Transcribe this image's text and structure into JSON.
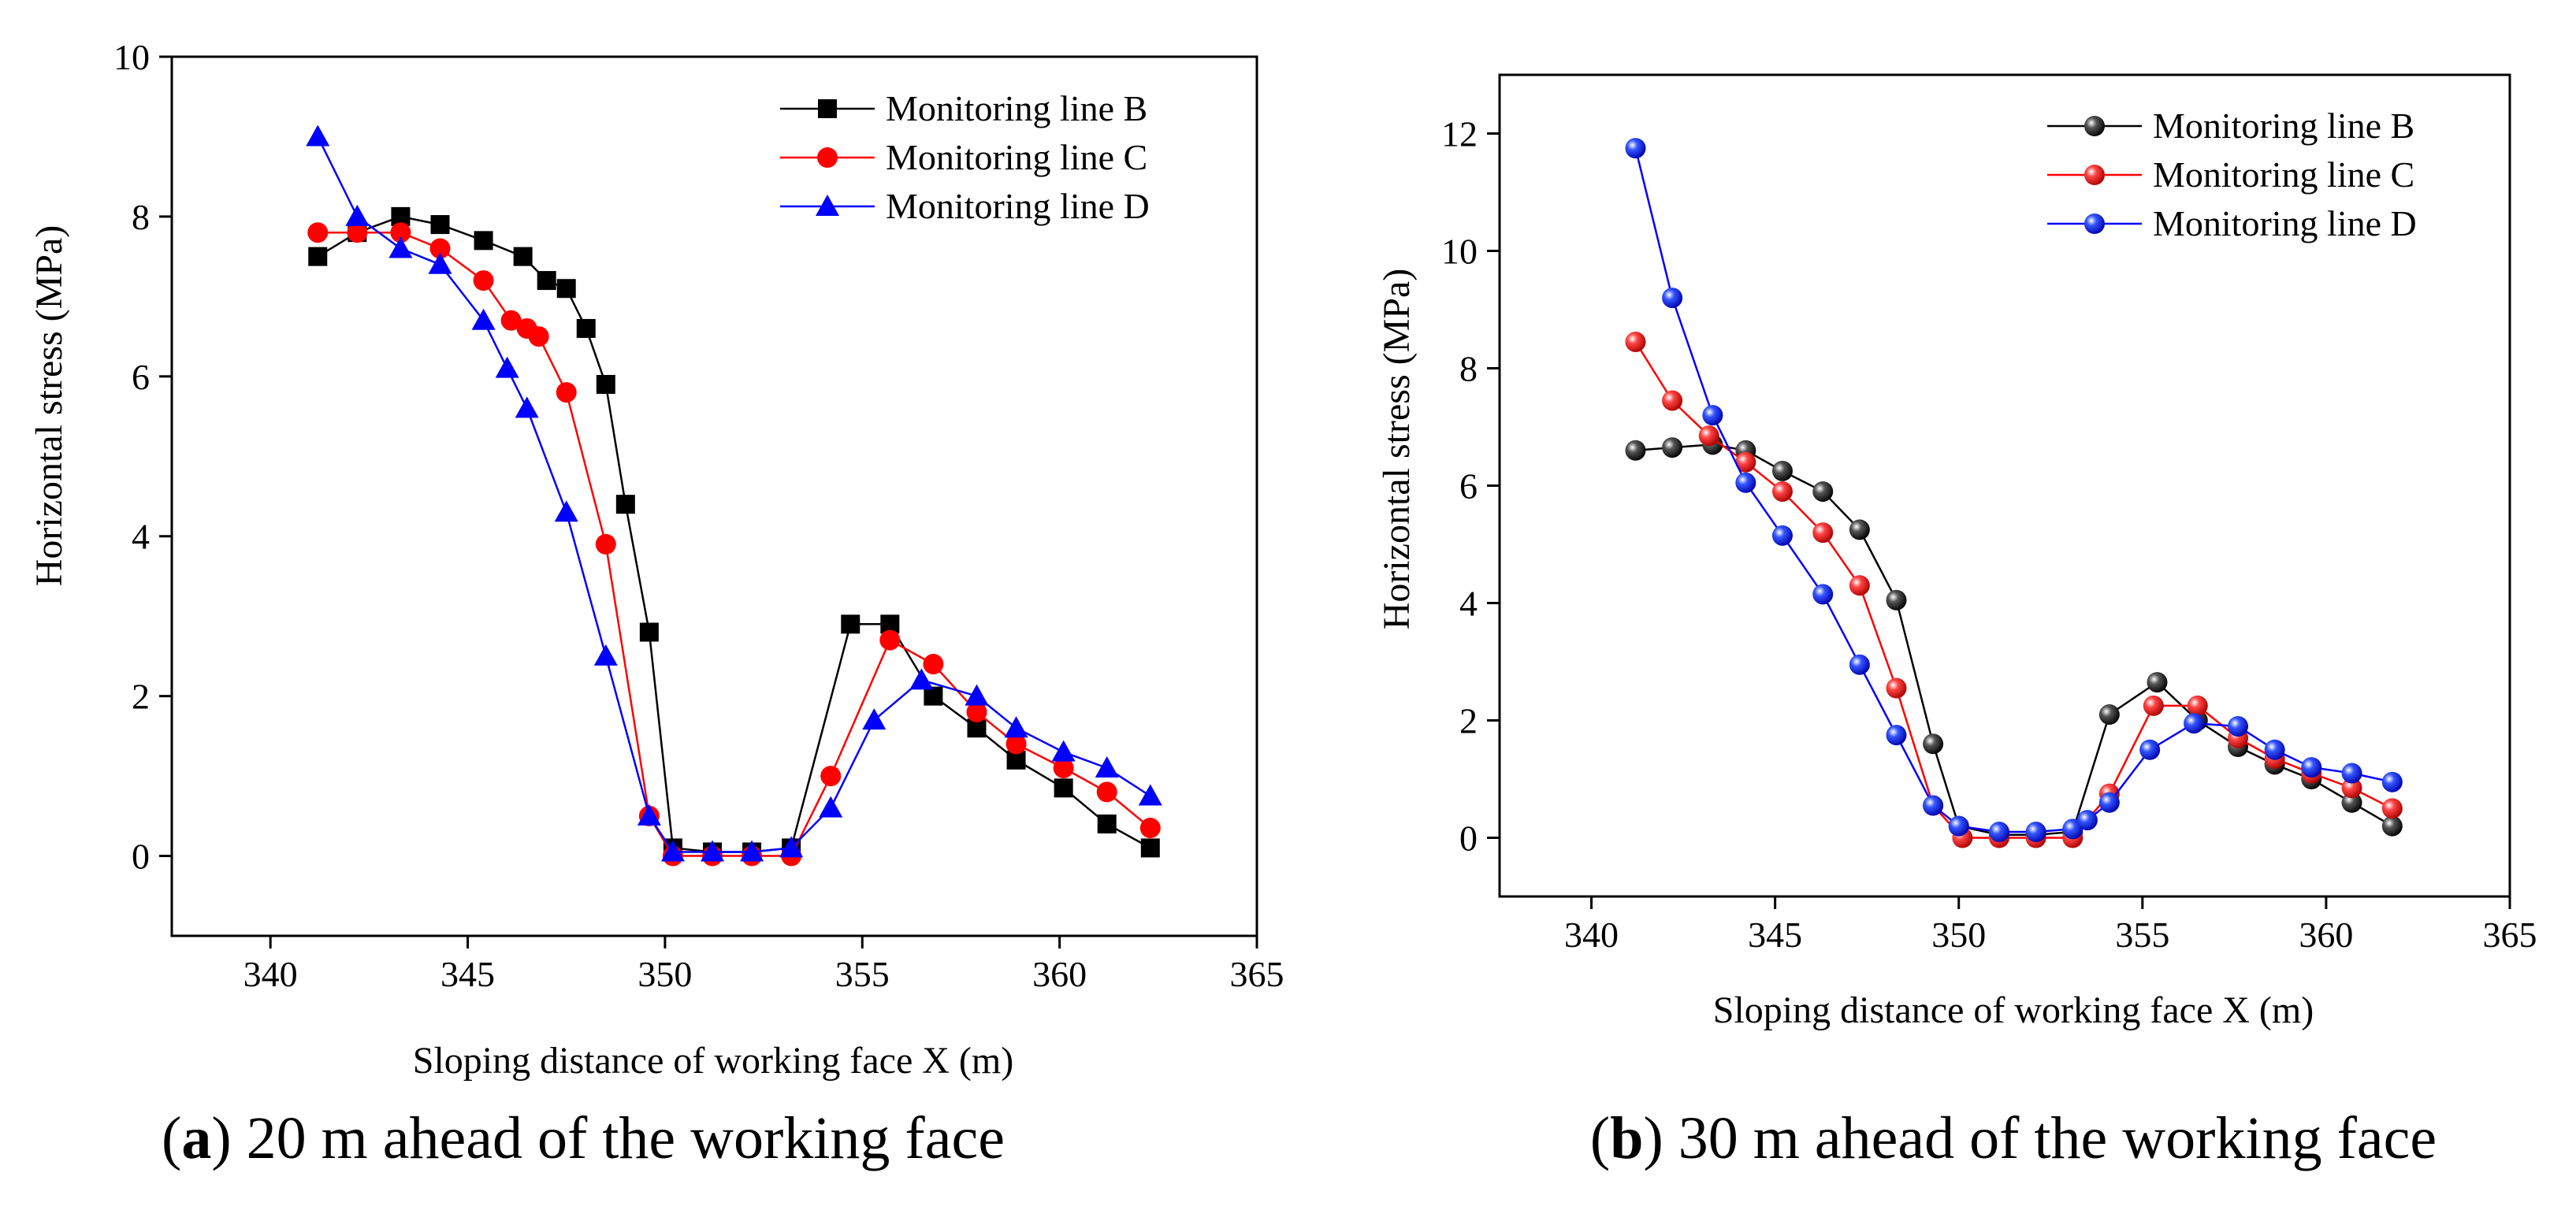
{
  "chart_data": [
    {
      "id": "a",
      "type": "line",
      "caption_letter": "a",
      "caption_text": "20 m ahead of the working face",
      "xlabel": "Sloping distance of working face X (m)",
      "ylabel": "Horizontal stress (MPa)",
      "xlim": [
        337.5,
        365
      ],
      "ylim": [
        -1,
        10
      ],
      "xticks": [
        340,
        345,
        350,
        355,
        360,
        365
      ],
      "yticks": [
        0,
        2,
        4,
        6,
        8,
        10
      ],
      "legend_position": "top-right",
      "series": [
        {
          "name": "Monitoring line B",
          "color": "#000000",
          "marker": "square",
          "x": [
            341.2,
            342.2,
            343.3,
            344.3,
            345.4,
            346.4,
            347.0,
            347.5,
            348.0,
            348.5,
            349.0,
            349.6,
            350.2,
            351.2,
            352.2,
            353.2,
            354.7,
            355.7,
            356.8,
            357.9,
            358.9,
            360.1,
            361.2,
            362.3
          ],
          "y": [
            7.5,
            7.8,
            8.0,
            7.9,
            7.7,
            7.5,
            7.2,
            7.1,
            6.6,
            5.9,
            4.4,
            2.8,
            0.1,
            0.05,
            0.05,
            0.1,
            2.9,
            2.9,
            2.0,
            1.6,
            1.2,
            0.85,
            0.4,
            0.1
          ]
        },
        {
          "name": "Monitoring line C",
          "color": "#ff0000",
          "marker": "circle",
          "x": [
            341.2,
            342.2,
            343.3,
            344.3,
            345.4,
            346.1,
            346.5,
            346.8,
            347.5,
            348.5,
            349.6,
            350.2,
            351.2,
            352.2,
            353.2,
            354.2,
            355.7,
            356.8,
            357.9,
            358.9,
            360.1,
            361.2,
            362.3
          ],
          "y": [
            7.8,
            7.8,
            7.8,
            7.6,
            7.2,
            6.7,
            6.6,
            6.5,
            5.8,
            3.9,
            0.5,
            0.0,
            0.0,
            0.0,
            0.0,
            1.0,
            2.7,
            2.4,
            1.8,
            1.4,
            1.1,
            0.8,
            0.35
          ]
        },
        {
          "name": "Monitoring line D",
          "color": "#0000ff",
          "marker": "triangle",
          "x": [
            341.2,
            342.2,
            343.3,
            344.3,
            345.4,
            346.0,
            346.5,
            347.5,
            348.5,
            349.6,
            350.2,
            351.2,
            352.2,
            353.2,
            354.2,
            355.3,
            356.5,
            357.9,
            358.9,
            360.1,
            361.2,
            362.3
          ],
          "y": [
            9.0,
            8.0,
            7.6,
            7.4,
            6.7,
            6.1,
            5.6,
            4.3,
            2.5,
            0.5,
            0.05,
            0.05,
            0.05,
            0.1,
            0.6,
            1.7,
            2.2,
            2.0,
            1.6,
            1.3,
            1.1,
            0.75
          ]
        }
      ]
    },
    {
      "id": "b",
      "type": "line",
      "caption_letter": "b",
      "caption_text": "30 m ahead of the working face",
      "xlabel": "Sloping distance of working face X (m)",
      "ylabel": "Horizontal stress (MPa)",
      "xlim": [
        337.5,
        365
      ],
      "ylim": [
        -1,
        13
      ],
      "xticks": [
        340,
        345,
        350,
        355,
        360,
        365
      ],
      "yticks": [
        0,
        2,
        4,
        6,
        8,
        10,
        12
      ],
      "legend_position": "top-right",
      "series": [
        {
          "name": "Monitoring line B",
          "color": "#000000",
          "marker": "sphere",
          "x": [
            341.2,
            342.2,
            343.3,
            344.2,
            345.2,
            346.3,
            347.3,
            348.3,
            349.3,
            350.0,
            351.1,
            352.1,
            353.1,
            354.1,
            355.4,
            356.5,
            357.6,
            358.6,
            359.6,
            360.7,
            361.8
          ],
          "y": [
            6.6,
            6.65,
            6.7,
            6.6,
            6.25,
            5.9,
            5.25,
            4.05,
            1.6,
            0.2,
            0.05,
            0.05,
            0.1,
            2.1,
            2.65,
            2.0,
            1.55,
            1.25,
            1.0,
            0.6,
            0.2
          ]
        },
        {
          "name": "Monitoring line C",
          "color": "#ff0000",
          "marker": "sphere",
          "x": [
            341.2,
            342.2,
            343.2,
            344.2,
            345.2,
            346.3,
            347.3,
            348.3,
            349.3,
            350.1,
            351.1,
            352.1,
            353.1,
            354.1,
            355.3,
            356.5,
            357.6,
            358.6,
            359.6,
            360.7,
            361.8
          ],
          "y": [
            8.45,
            7.45,
            6.85,
            6.4,
            5.9,
            5.2,
            4.3,
            2.55,
            0.55,
            0.0,
            0.0,
            0.0,
            0.0,
            0.75,
            2.25,
            2.25,
            1.7,
            1.35,
            1.1,
            0.85,
            0.5
          ]
        },
        {
          "name": "Monitoring line D",
          "color": "#0000ff",
          "marker": "sphere",
          "x": [
            341.2,
            342.2,
            343.3,
            344.2,
            345.2,
            346.3,
            347.3,
            348.3,
            349.3,
            350.0,
            351.1,
            352.1,
            353.1,
            353.5,
            354.1,
            355.2,
            356.4,
            357.6,
            358.6,
            359.6,
            360.7,
            361.8
          ],
          "y": [
            11.75,
            9.2,
            7.2,
            6.05,
            5.15,
            4.15,
            2.95,
            1.75,
            0.55,
            0.2,
            0.1,
            0.1,
            0.15,
            0.3,
            0.6,
            1.5,
            1.95,
            1.9,
            1.5,
            1.2,
            1.1,
            0.95
          ]
        }
      ]
    }
  ]
}
